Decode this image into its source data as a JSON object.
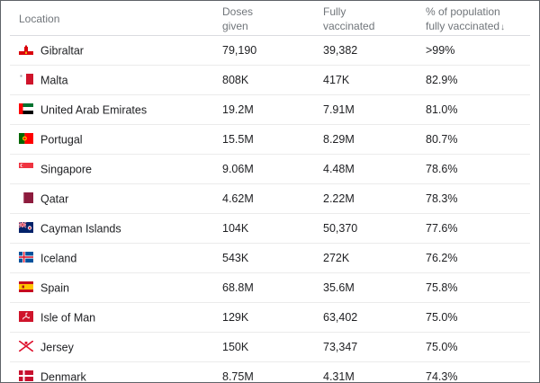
{
  "headers": {
    "location": "Location",
    "doses_line1": "Doses",
    "doses_line2": "given",
    "fully_line1": "Fully",
    "fully_line2": "vaccinated",
    "pct_line1": "% of population",
    "pct_line2": "fully vaccinated",
    "sort_icon": "↓"
  },
  "rows": [
    {
      "country": "Gibraltar",
      "doses": "79,190",
      "fully": "39,382",
      "pct": ">99%",
      "flag": "gibraltar-flag-icon"
    },
    {
      "country": "Malta",
      "doses": "808K",
      "fully": "417K",
      "pct": "82.9%",
      "flag": "malta-flag-icon"
    },
    {
      "country": "United Arab Emirates",
      "doses": "19.2M",
      "fully": "7.91M",
      "pct": "81.0%",
      "flag": "uae-flag-icon"
    },
    {
      "country": "Portugal",
      "doses": "15.5M",
      "fully": "8.29M",
      "pct": "80.7%",
      "flag": "portugal-flag-icon"
    },
    {
      "country": "Singapore",
      "doses": "9.06M",
      "fully": "4.48M",
      "pct": "78.6%",
      "flag": "singapore-flag-icon"
    },
    {
      "country": "Qatar",
      "doses": "4.62M",
      "fully": "2.22M",
      "pct": "78.3%",
      "flag": "qatar-flag-icon"
    },
    {
      "country": "Cayman Islands",
      "doses": "104K",
      "fully": "50,370",
      "pct": "77.6%",
      "flag": "cayman-islands-flag-icon"
    },
    {
      "country": "Iceland",
      "doses": "543K",
      "fully": "272K",
      "pct": "76.2%",
      "flag": "iceland-flag-icon"
    },
    {
      "country": "Spain",
      "doses": "68.8M",
      "fully": "35.6M",
      "pct": "75.8%",
      "flag": "spain-flag-icon"
    },
    {
      "country": "Isle of Man",
      "doses": "129K",
      "fully": "63,402",
      "pct": "75.0%",
      "flag": "isle-of-man-flag-icon"
    },
    {
      "country": "Jersey",
      "doses": "150K",
      "fully": "73,347",
      "pct": "75.0%",
      "flag": "jersey-flag-icon"
    },
    {
      "country": "Denmark",
      "doses": "8.75M",
      "fully": "4.31M",
      "pct": "74.3%",
      "flag": "denmark-flag-icon"
    }
  ],
  "colors": {
    "header_text": "#70757a",
    "body_text": "#202124",
    "row_divider": "#ebebeb",
    "frame_border": "#5f6368"
  }
}
